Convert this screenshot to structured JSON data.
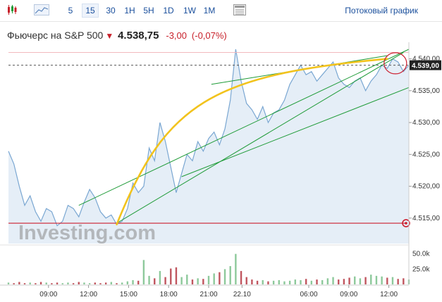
{
  "toolbar": {
    "intervals": [
      "5",
      "15",
      "30",
      "1H",
      "5H",
      "1D",
      "1W",
      "1M"
    ],
    "active_interval": "15",
    "streaming_label": "Потоковый график"
  },
  "header": {
    "instrument": "Фьючерс на S&P 500",
    "price": "4.538,75",
    "change": "-3,00",
    "change_pct": "(-0,07%)"
  },
  "watermark": "Investing.com",
  "chart_data": {
    "type": "area",
    "title": "",
    "xlabel": "",
    "ylabel": "",
    "x_ticks": [
      "09:00",
      "12:00",
      "15:00",
      "18:00",
      "21:00",
      "22.10",
      "06:00",
      "09:00",
      "12:00"
    ],
    "y_ticks": [
      "4.515,00",
      "4.520,00",
      "4.525,00",
      "4.530,00",
      "4.535,00",
      "4.540,00"
    ],
    "ylim": [
      4511.0,
      4541.5
    ],
    "current_price_label": "4.539,00",
    "current_price": 4539.0,
    "support_level": 4514.2,
    "resistance_level": 4541.0,
    "volume_ticks": [
      "50.0k",
      "25.0k"
    ],
    "price_series": [
      [
        0,
        4525.5
      ],
      [
        2,
        4523.5
      ],
      [
        4,
        4520.0
      ],
      [
        6,
        4517.0
      ],
      [
        8,
        4518.5
      ],
      [
        10,
        4516.0
      ],
      [
        12,
        4514.5
      ],
      [
        14,
        4516.5
      ],
      [
        16,
        4516.0
      ],
      [
        18,
        4513.8
      ],
      [
        20,
        4514.5
      ],
      [
        22,
        4517.0
      ],
      [
        24,
        4516.5
      ],
      [
        26,
        4515.2
      ],
      [
        28,
        4517.5
      ],
      [
        30,
        4519.5
      ],
      [
        32,
        4518.2
      ],
      [
        34,
        4516.0
      ],
      [
        36,
        4515.0
      ],
      [
        38,
        4515.5
      ],
      [
        40,
        4514.0
      ],
      [
        42,
        4514.5
      ],
      [
        44,
        4516.5
      ],
      [
        46,
        4520.5
      ],
      [
        48,
        4519.0
      ],
      [
        50,
        4520.0
      ],
      [
        52,
        4526.0
      ],
      [
        54,
        4524.0
      ],
      [
        56,
        4530.0
      ],
      [
        58,
        4527.0
      ],
      [
        60,
        4523.0
      ],
      [
        62,
        4519.0
      ],
      [
        64,
        4522.0
      ],
      [
        66,
        4525.0
      ],
      [
        68,
        4524.0
      ],
      [
        70,
        4527.0
      ],
      [
        72,
        4525.5
      ],
      [
        74,
        4527.5
      ],
      [
        76,
        4528.5
      ],
      [
        78,
        4526.5
      ],
      [
        80,
        4529.0
      ],
      [
        82,
        4533.5
      ],
      [
        84,
        4541.5
      ],
      [
        86,
        4536.5
      ],
      [
        88,
        4533.0
      ],
      [
        90,
        4532.0
      ],
      [
        92,
        4530.5
      ],
      [
        94,
        4532.5
      ],
      [
        96,
        4530.0
      ],
      [
        98,
        4531.5
      ],
      [
        100,
        4532.0
      ],
      [
        102,
        4533.5
      ],
      [
        104,
        4536.0
      ],
      [
        106,
        4537.5
      ],
      [
        108,
        4539.0
      ],
      [
        110,
        4537.5
      ],
      [
        112,
        4538.0
      ],
      [
        114,
        4536.5
      ],
      [
        116,
        4537.5
      ],
      [
        118,
        4538.5
      ],
      [
        120,
        4539.5
      ],
      [
        122,
        4537.0
      ],
      [
        124,
        4536.0
      ],
      [
        126,
        4535.5
      ],
      [
        128,
        4536.5
      ],
      [
        130,
        4537.0
      ],
      [
        132,
        4535.0
      ],
      [
        134,
        4536.5
      ],
      [
        136,
        4537.5
      ],
      [
        138,
        4539.0
      ],
      [
        140,
        4538.5
      ],
      [
        142,
        4540.0
      ],
      [
        144,
        4539.5
      ],
      [
        146,
        4538.0
      ],
      [
        148,
        4539.0
      ]
    ],
    "volume_series": [
      [
        0,
        3
      ],
      [
        2,
        2
      ],
      [
        4,
        4
      ],
      [
        6,
        2
      ],
      [
        8,
        3
      ],
      [
        10,
        2
      ],
      [
        12,
        4
      ],
      [
        14,
        3
      ],
      [
        16,
        2
      ],
      [
        18,
        3
      ],
      [
        20,
        2
      ],
      [
        22,
        3
      ],
      [
        24,
        2
      ],
      [
        26,
        4
      ],
      [
        28,
        3
      ],
      [
        30,
        2
      ],
      [
        32,
        3
      ],
      [
        34,
        2
      ],
      [
        36,
        3
      ],
      [
        38,
        4
      ],
      [
        40,
        2
      ],
      [
        42,
        3
      ],
      [
        44,
        5
      ],
      [
        46,
        7
      ],
      [
        48,
        6
      ],
      [
        50,
        40
      ],
      [
        52,
        14
      ],
      [
        54,
        10
      ],
      [
        56,
        22
      ],
      [
        58,
        12
      ],
      [
        60,
        26
      ],
      [
        62,
        28
      ],
      [
        64,
        12
      ],
      [
        66,
        16
      ],
      [
        68,
        8
      ],
      [
        70,
        10
      ],
      [
        72,
        9
      ],
      [
        74,
        14
      ],
      [
        76,
        18
      ],
      [
        78,
        20
      ],
      [
        80,
        25
      ],
      [
        82,
        30
      ],
      [
        84,
        50
      ],
      [
        86,
        22
      ],
      [
        88,
        12
      ],
      [
        90,
        8
      ],
      [
        92,
        6
      ],
      [
        94,
        7
      ],
      [
        96,
        5
      ],
      [
        98,
        6
      ],
      [
        100,
        7
      ],
      [
        102,
        5
      ],
      [
        104,
        6
      ],
      [
        106,
        8
      ],
      [
        108,
        7
      ],
      [
        110,
        9
      ],
      [
        112,
        6
      ],
      [
        114,
        8
      ],
      [
        116,
        7
      ],
      [
        118,
        10
      ],
      [
        120,
        12
      ],
      [
        122,
        8
      ],
      [
        124,
        9
      ],
      [
        126,
        11
      ],
      [
        128,
        13
      ],
      [
        130,
        10
      ],
      [
        132,
        12
      ],
      [
        134,
        16
      ],
      [
        136,
        14
      ],
      [
        138,
        13
      ],
      [
        140,
        11
      ],
      [
        142,
        12
      ],
      [
        144,
        9
      ],
      [
        146,
        10
      ],
      [
        148,
        8
      ]
    ],
    "colors": {
      "area_line": "#7aa7d2",
      "area_fill": "#dce8f4",
      "trendlines": "#1e9b37",
      "curve": "#f2c31d",
      "support_line": "#cc1f2f",
      "volume_up": "#8dc99b",
      "volume_down": "#c0565f"
    }
  }
}
